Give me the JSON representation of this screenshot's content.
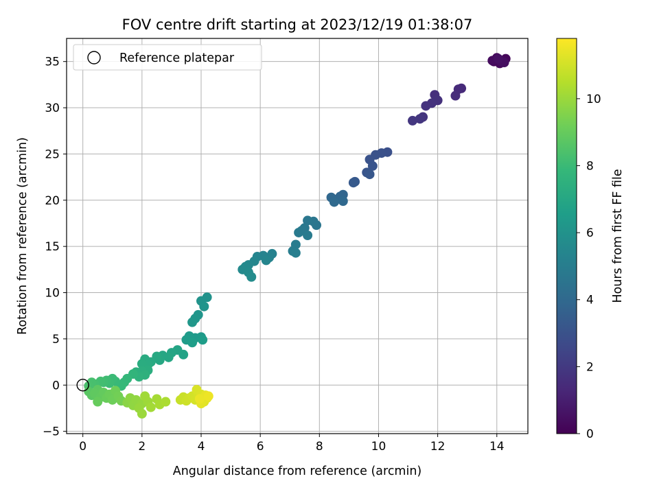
{
  "chart_data": {
    "type": "scatter",
    "title": "FOV centre drift starting at 2023/12/19 01:38:07",
    "xlabel": "Angular distance from reference (arcmin)",
    "ylabel": "Rotation from reference (arcmin)",
    "xlim": [
      -0.55,
      15.05
    ],
    "ylim": [
      -5.25,
      37.5
    ],
    "xticks": [
      0,
      2,
      4,
      6,
      8,
      10,
      12,
      14
    ],
    "yticks": [
      -5,
      0,
      5,
      10,
      15,
      20,
      25,
      30,
      35
    ],
    "grid": true,
    "legend": {
      "placement": "top-left",
      "entries": [
        {
          "label": "Reference platepar",
          "marker": "open-circle"
        }
      ]
    },
    "reference_point": {
      "x": 0,
      "y": 0
    },
    "colorbar": {
      "label": "Hours from first FF file",
      "range": [
        0,
        11.8
      ],
      "ticks": [
        0,
        2,
        4,
        6,
        8,
        10
      ],
      "colormap": "viridis",
      "stops": [
        "#440154",
        "#482878",
        "#3e4989",
        "#31688e",
        "#26828e",
        "#1f9e89",
        "#35b779",
        "#6ece58",
        "#b5de2b",
        "#fde725"
      ]
    },
    "series": [
      {
        "points": [
          [
            14.0,
            35.2,
            0.05
          ],
          [
            14.2,
            35.1,
            0.1
          ],
          [
            13.9,
            35.0,
            0.15
          ],
          [
            14.3,
            35.3,
            0.2
          ],
          [
            14.1,
            34.8,
            0.25
          ],
          [
            14.0,
            35.4,
            0.3
          ],
          [
            13.85,
            35.1,
            0.35
          ],
          [
            14.15,
            35.0,
            0.4
          ],
          [
            14.25,
            34.9,
            0.45
          ],
          [
            14.05,
            35.3,
            0.5
          ],
          [
            12.8,
            32.1,
            1.4
          ],
          [
            12.7,
            32.0,
            1.45
          ],
          [
            12.6,
            31.3,
            1.5
          ],
          [
            11.9,
            31.4,
            1.6
          ],
          [
            12.0,
            30.8,
            1.65
          ],
          [
            11.8,
            30.5,
            1.7
          ],
          [
            11.6,
            30.2,
            1.75
          ],
          [
            11.5,
            29.0,
            1.8
          ],
          [
            11.4,
            28.8,
            1.85
          ],
          [
            11.15,
            28.6,
            1.9
          ],
          [
            10.3,
            25.2,
            2.9
          ],
          [
            10.1,
            25.1,
            2.95
          ],
          [
            9.9,
            24.9,
            3.0
          ],
          [
            9.7,
            24.4,
            3.05
          ],
          [
            9.8,
            23.7,
            3.1
          ],
          [
            9.6,
            23.0,
            3.15
          ],
          [
            9.7,
            22.8,
            3.2
          ],
          [
            9.2,
            22.0,
            3.3
          ],
          [
            9.15,
            21.9,
            3.35
          ],
          [
            8.8,
            20.6,
            3.8
          ],
          [
            8.7,
            20.4,
            3.85
          ],
          [
            8.6,
            20.1,
            3.9
          ],
          [
            8.4,
            20.3,
            3.95
          ],
          [
            8.8,
            19.9,
            4.0
          ],
          [
            8.5,
            19.8,
            4.05
          ],
          [
            7.9,
            17.3,
            4.6
          ],
          [
            7.8,
            17.7,
            4.65
          ],
          [
            7.6,
            17.8,
            4.7
          ],
          [
            7.5,
            17.0,
            4.75
          ],
          [
            7.4,
            16.7,
            4.8
          ],
          [
            7.3,
            16.5,
            4.85
          ],
          [
            7.6,
            16.2,
            4.9
          ],
          [
            7.2,
            15.2,
            4.95
          ],
          [
            7.1,
            14.5,
            5.0
          ],
          [
            7.2,
            14.3,
            5.05
          ],
          [
            6.4,
            14.2,
            5.2
          ],
          [
            6.3,
            13.8,
            5.25
          ],
          [
            6.1,
            14.0,
            5.3
          ],
          [
            5.9,
            13.9,
            5.35
          ],
          [
            6.2,
            13.5,
            5.4
          ],
          [
            5.8,
            13.4,
            5.45
          ],
          [
            5.6,
            13.0,
            5.5
          ],
          [
            5.5,
            12.8,
            5.55
          ],
          [
            5.4,
            12.5,
            5.6
          ],
          [
            5.6,
            12.2,
            5.65
          ],
          [
            5.7,
            11.7,
            5.7
          ],
          [
            4.2,
            9.5,
            6.0
          ],
          [
            4.0,
            9.1,
            6.05
          ],
          [
            4.1,
            8.5,
            6.1
          ],
          [
            3.9,
            7.6,
            6.15
          ],
          [
            3.8,
            7.2,
            6.2
          ],
          [
            3.7,
            6.8,
            6.25
          ],
          [
            4.0,
            5.2,
            6.3
          ],
          [
            3.8,
            5.1,
            6.35
          ],
          [
            3.6,
            5.3,
            6.4
          ],
          [
            3.5,
            4.9,
            6.45
          ],
          [
            4.05,
            4.9,
            6.5
          ],
          [
            3.7,
            4.6,
            6.55
          ],
          [
            3.4,
            3.3,
            6.8
          ],
          [
            3.2,
            3.8,
            6.85
          ],
          [
            3.0,
            3.5,
            6.9
          ],
          [
            2.9,
            3.0,
            6.95
          ],
          [
            2.7,
            3.2,
            7.0
          ],
          [
            2.6,
            2.7,
            7.05
          ],
          [
            2.5,
            3.1,
            7.1
          ],
          [
            2.3,
            2.5,
            7.15
          ],
          [
            2.1,
            2.8,
            7.2
          ],
          [
            2.2,
            2.2,
            7.25
          ],
          [
            2.0,
            2.3,
            7.3
          ],
          [
            2.2,
            1.6,
            7.35
          ],
          [
            2.0,
            1.5,
            7.4
          ],
          [
            1.8,
            1.4,
            7.45
          ],
          [
            2.1,
            1.1,
            7.5
          ],
          [
            1.9,
            0.9,
            7.55
          ],
          [
            1.7,
            1.2,
            7.7
          ],
          [
            1.5,
            0.7,
            7.8
          ],
          [
            1.4,
            0.3,
            7.85
          ],
          [
            1.3,
            -0.1,
            7.9
          ],
          [
            1.1,
            0.4,
            7.95
          ],
          [
            1.0,
            0.7,
            8.0
          ],
          [
            0.9,
            0.2,
            8.05
          ],
          [
            0.8,
            0.5,
            8.1
          ],
          [
            0.7,
            0.3,
            8.15
          ],
          [
            0.6,
            0.4,
            8.2
          ],
          [
            0.4,
            0.1,
            8.25
          ],
          [
            0.3,
            0.3,
            8.3
          ],
          [
            0.2,
            -0.1,
            8.35
          ],
          [
            0.2,
            -0.7,
            8.7
          ],
          [
            0.3,
            -1.1,
            8.75
          ],
          [
            0.5,
            -0.5,
            8.8
          ],
          [
            0.4,
            -0.9,
            8.85
          ],
          [
            0.6,
            -1.3,
            8.9
          ],
          [
            0.7,
            -0.8,
            8.95
          ],
          [
            0.5,
            -1.8,
            9.0
          ],
          [
            0.8,
            -1.4,
            9.05
          ],
          [
            0.9,
            -1.0,
            9.1
          ],
          [
            1.0,
            -1.6,
            9.15
          ],
          [
            1.1,
            -0.6,
            9.2
          ],
          [
            1.2,
            -1.2,
            9.25
          ],
          [
            1.3,
            -1.7,
            9.3
          ],
          [
            1.5,
            -1.9,
            9.7
          ],
          [
            1.6,
            -1.4,
            9.75
          ],
          [
            1.7,
            -2.2,
            9.8
          ],
          [
            1.8,
            -1.6,
            9.85
          ],
          [
            2.0,
            -2.0,
            9.9
          ],
          [
            1.9,
            -2.5,
            9.95
          ],
          [
            2.0,
            -3.1,
            10.0
          ],
          [
            2.2,
            -1.8,
            10.05
          ],
          [
            2.1,
            -1.2,
            10.1
          ],
          [
            2.3,
            -2.4,
            10.15
          ],
          [
            2.5,
            -1.5,
            10.2
          ],
          [
            2.6,
            -2.1,
            10.25
          ],
          [
            2.8,
            -1.8,
            10.3
          ],
          [
            3.3,
            -1.6,
            10.8
          ],
          [
            3.4,
            -1.3,
            10.85
          ],
          [
            3.5,
            -1.7,
            10.9
          ],
          [
            3.6,
            -1.4,
            10.95
          ],
          [
            3.7,
            -1.2,
            11.0
          ],
          [
            3.8,
            -1.6,
            11.05
          ],
          [
            3.9,
            -0.9,
            11.1
          ],
          [
            3.85,
            -0.5,
            11.15
          ],
          [
            4.0,
            -1.0,
            11.2
          ],
          [
            4.1,
            -1.8,
            11.25
          ],
          [
            4.2,
            -1.4,
            11.3
          ],
          [
            4.0,
            -2.0,
            11.35
          ],
          [
            4.15,
            -1.1,
            11.4
          ],
          [
            3.95,
            -1.5,
            11.45
          ],
          [
            4.25,
            -1.2,
            11.5
          ]
        ]
      }
    ]
  }
}
